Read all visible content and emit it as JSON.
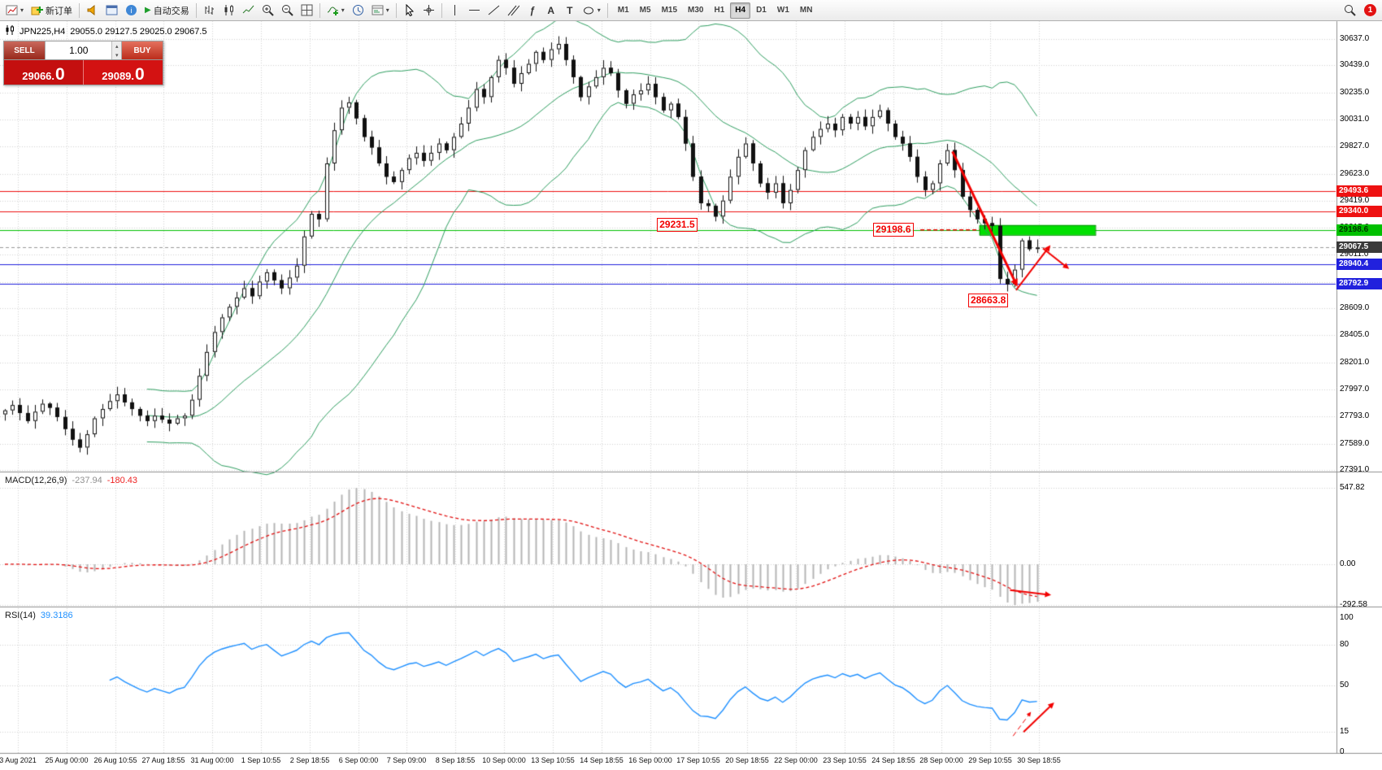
{
  "toolbar": {
    "new_order_label": "新订单",
    "autotrading_label": "自动交易",
    "timeframes": [
      "M1",
      "M5",
      "M15",
      "M30",
      "H1",
      "H4",
      "D1",
      "W1",
      "MN"
    ],
    "active_timeframe": "H4",
    "notification_count": "1",
    "tool_glyphs": {
      "fibonacci": "ƒ",
      "text": "A",
      "label": "T"
    }
  },
  "chart_header": {
    "symbol_period": "JPN225,H4",
    "ohlc_values": "29055.0 29127.5 29025.0 29067.5"
  },
  "trade_panel": {
    "sell_label": "SELL",
    "buy_label": "BUY",
    "volume": "1.00",
    "sell_price_main": "29066.",
    "sell_price_big": "0",
    "buy_price_main": "29089.",
    "buy_price_big": "0"
  },
  "price_axis": {
    "labels": [
      "30637.0",
      "30439.0",
      "30235.0",
      "30031.0",
      "29827.0",
      "29623.0",
      "29419.0",
      "29215.0",
      "29011.0",
      "28807.0",
      "28609.0",
      "28405.0",
      "28201.0",
      "27997.0",
      "27793.0",
      "27589.0",
      "27391.0"
    ]
  },
  "levels": [
    {
      "price": 29493.6,
      "label": "29493.6",
      "color": "#ee1111"
    },
    {
      "price": 29340.0,
      "label": "29340.0",
      "color": "#ee1111"
    },
    {
      "price": 29198.6,
      "label": "29198.6",
      "color": "#00c000",
      "text_color": "#003300"
    },
    {
      "price": 29067.5,
      "label": "29067.5",
      "color": "#3a3a3a",
      "style": "current"
    },
    {
      "price": 28940.4,
      "label": "28940.4",
      "color": "#2121dd"
    },
    {
      "price": 28792.9,
      "label": "28792.9",
      "color": "#2121dd"
    }
  ],
  "green_zone": {
    "price": 29198.6,
    "bar_start": 130.3,
    "bar_end": 145.8
  },
  "annotations": [
    {
      "text": "29231.5",
      "bar": 87.2,
      "price": 29231.5
    },
    {
      "text": "29198.6",
      "bar": 116.1,
      "price": 29198.6,
      "dashed_to_bar": 130.3
    },
    {
      "text": "28663.8",
      "bar": 128.8,
      "price": 28663.8
    }
  ],
  "arrows": {
    "main": [
      {
        "bar1": 126.7,
        "val1": 29790,
        "bar2": 135.4,
        "val2": 28770,
        "width": 3
      },
      {
        "bar1": 135.2,
        "val1": 28745,
        "bar2": 139.8,
        "val2": 29085,
        "width": 2
      },
      {
        "bar1": 138.8,
        "val1": 29060,
        "bar2": 142.3,
        "val2": 28905,
        "width": 2
      }
    ],
    "macd": [
      {
        "bar1": 134.4,
        "val1": -185,
        "bar2": 139.9,
        "val2": -220,
        "width": 2
      }
    ],
    "rsi": [
      {
        "bar1": 134.8,
        "val1": 12,
        "bar2": 137.2,
        "val2": 30,
        "width": 1,
        "dashed": true
      },
      {
        "bar1": 136.2,
        "val1": 15,
        "bar2": 140.3,
        "val2": 37,
        "width": 2
      }
    ]
  },
  "macd_panel": {
    "name": "MACD(12,26,9)",
    "value_main": "-237.94",
    "value_signal": "-180.43",
    "axis_labels": [
      "547.82",
      "0.00",
      "-292.58"
    ]
  },
  "rsi_panel": {
    "name": "RSI(14)",
    "value": "39.3186",
    "axis_labels": [
      "100",
      "80",
      "50",
      "15",
      "0"
    ],
    "level_lines": [
      80,
      50,
      15
    ]
  },
  "time_axis": {
    "labels": [
      "3 Aug 2021",
      "25 Aug 00:00",
      "26 Aug 10:55",
      "27 Aug 18:55",
      "31 Aug 00:00",
      "1 Sep 10:55",
      "2 Sep 18:55",
      "6 Sep 00:00",
      "7 Sep 09:00",
      "8 Sep 18:55",
      "10 Sep 00:00",
      "13 Sep 10:55",
      "14 Sep 18:55",
      "16 Sep 00:00",
      "17 Sep 10:55",
      "20 Sep 18:55",
      "22 Sep 00:00",
      "23 Sep 10:55",
      "24 Sep 18:55",
      "28 Sep 00:00",
      "29 Sep 10:55",
      "30 Sep 18:55"
    ]
  },
  "chart_data": {
    "type": "candlestick",
    "symbol": "JPN225",
    "timeframe": "H4",
    "price_range": [
      27391.0,
      30637.0
    ],
    "closes": [
      27840,
      27880,
      27820,
      27760,
      27830,
      27890,
      27860,
      27790,
      27700,
      27620,
      27560,
      27660,
      27780,
      27850,
      27910,
      27960,
      27900,
      27850,
      27800,
      27760,
      27800,
      27770,
      27740,
      27780,
      27800,
      27920,
      28100,
      28280,
      28430,
      28540,
      28620,
      28690,
      28760,
      28700,
      28810,
      28880,
      28820,
      28760,
      28840,
      28930,
      29150,
      29320,
      29280,
      29700,
      29950,
      30120,
      30160,
      30040,
      29900,
      29820,
      29700,
      29600,
      29560,
      29650,
      29740,
      29780,
      29720,
      29780,
      29850,
      29800,
      29900,
      30000,
      30120,
      30260,
      30200,
      30350,
      30480,
      30420,
      30300,
      30380,
      30450,
      30540,
      30480,
      30560,
      30600,
      30480,
      30350,
      30200,
      30280,
      30350,
      30420,
      30380,
      30250,
      30150,
      30220,
      30250,
      30300,
      30200,
      30100,
      30150,
      30050,
      29850,
      29600,
      29400,
      29380,
      29300,
      29420,
      29600,
      29750,
      29850,
      29700,
      29550,
      29480,
      29550,
      29400,
      29500,
      29650,
      29800,
      29900,
      29960,
      30000,
      29950,
      30050,
      30000,
      30050,
      29980,
      30050,
      30100,
      30000,
      29900,
      29850,
      29750,
      29600,
      29500,
      29550,
      29700,
      29800,
      29650,
      29450,
      29350,
      29280,
      29250,
      29230,
      28830,
      28790,
      28900,
      29120,
      29055,
      29067.5
    ],
    "last_candle": {
      "open": 29055.0,
      "high": 29127.5,
      "low": 29025.0,
      "close": 29067.5
    },
    "indicators": {
      "bollinger_bands": {
        "period": 20,
        "deviation": 2,
        "color": "#2e9e60"
      },
      "macd": {
        "fast": 12,
        "slow": 26,
        "signal": 9,
        "main_value": -237.94,
        "signal_value": -180.43
      },
      "rsi": {
        "period": 14,
        "value": 39.3186
      }
    }
  },
  "colors": {
    "level_red": "#ee1111",
    "level_blue": "#2121dd",
    "level_green": "#00c000",
    "zone_green": "#00e000",
    "current": "#3a3a3a",
    "macd_hist": "#b5b5b5",
    "macd_signal": "#e21111",
    "rsi_line": "#1e90ff",
    "annotation": "#f20000"
  }
}
